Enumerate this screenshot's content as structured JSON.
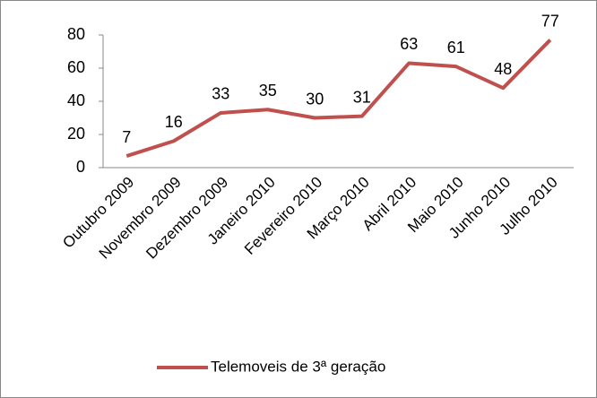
{
  "chart_data": {
    "type": "line",
    "categories": [
      "Outubro 2009",
      "Novembro 2009",
      "Dezembro 2009",
      "Janeiro 2010",
      "Fevereiro 2010",
      "Março 2010",
      "Abril 2010",
      "Maio 2010",
      "Junho 2010",
      "Julho 2010"
    ],
    "series": [
      {
        "name": "Telemoveis de 3ª geração",
        "color": "#c0504d",
        "values": [
          7,
          16,
          33,
          35,
          30,
          31,
          63,
          61,
          48,
          77
        ]
      }
    ],
    "ylim": [
      0,
      80
    ],
    "yticks": [
      0,
      20,
      40,
      60,
      80
    ],
    "grid": false,
    "legend": "bottom",
    "data_labels": true
  }
}
